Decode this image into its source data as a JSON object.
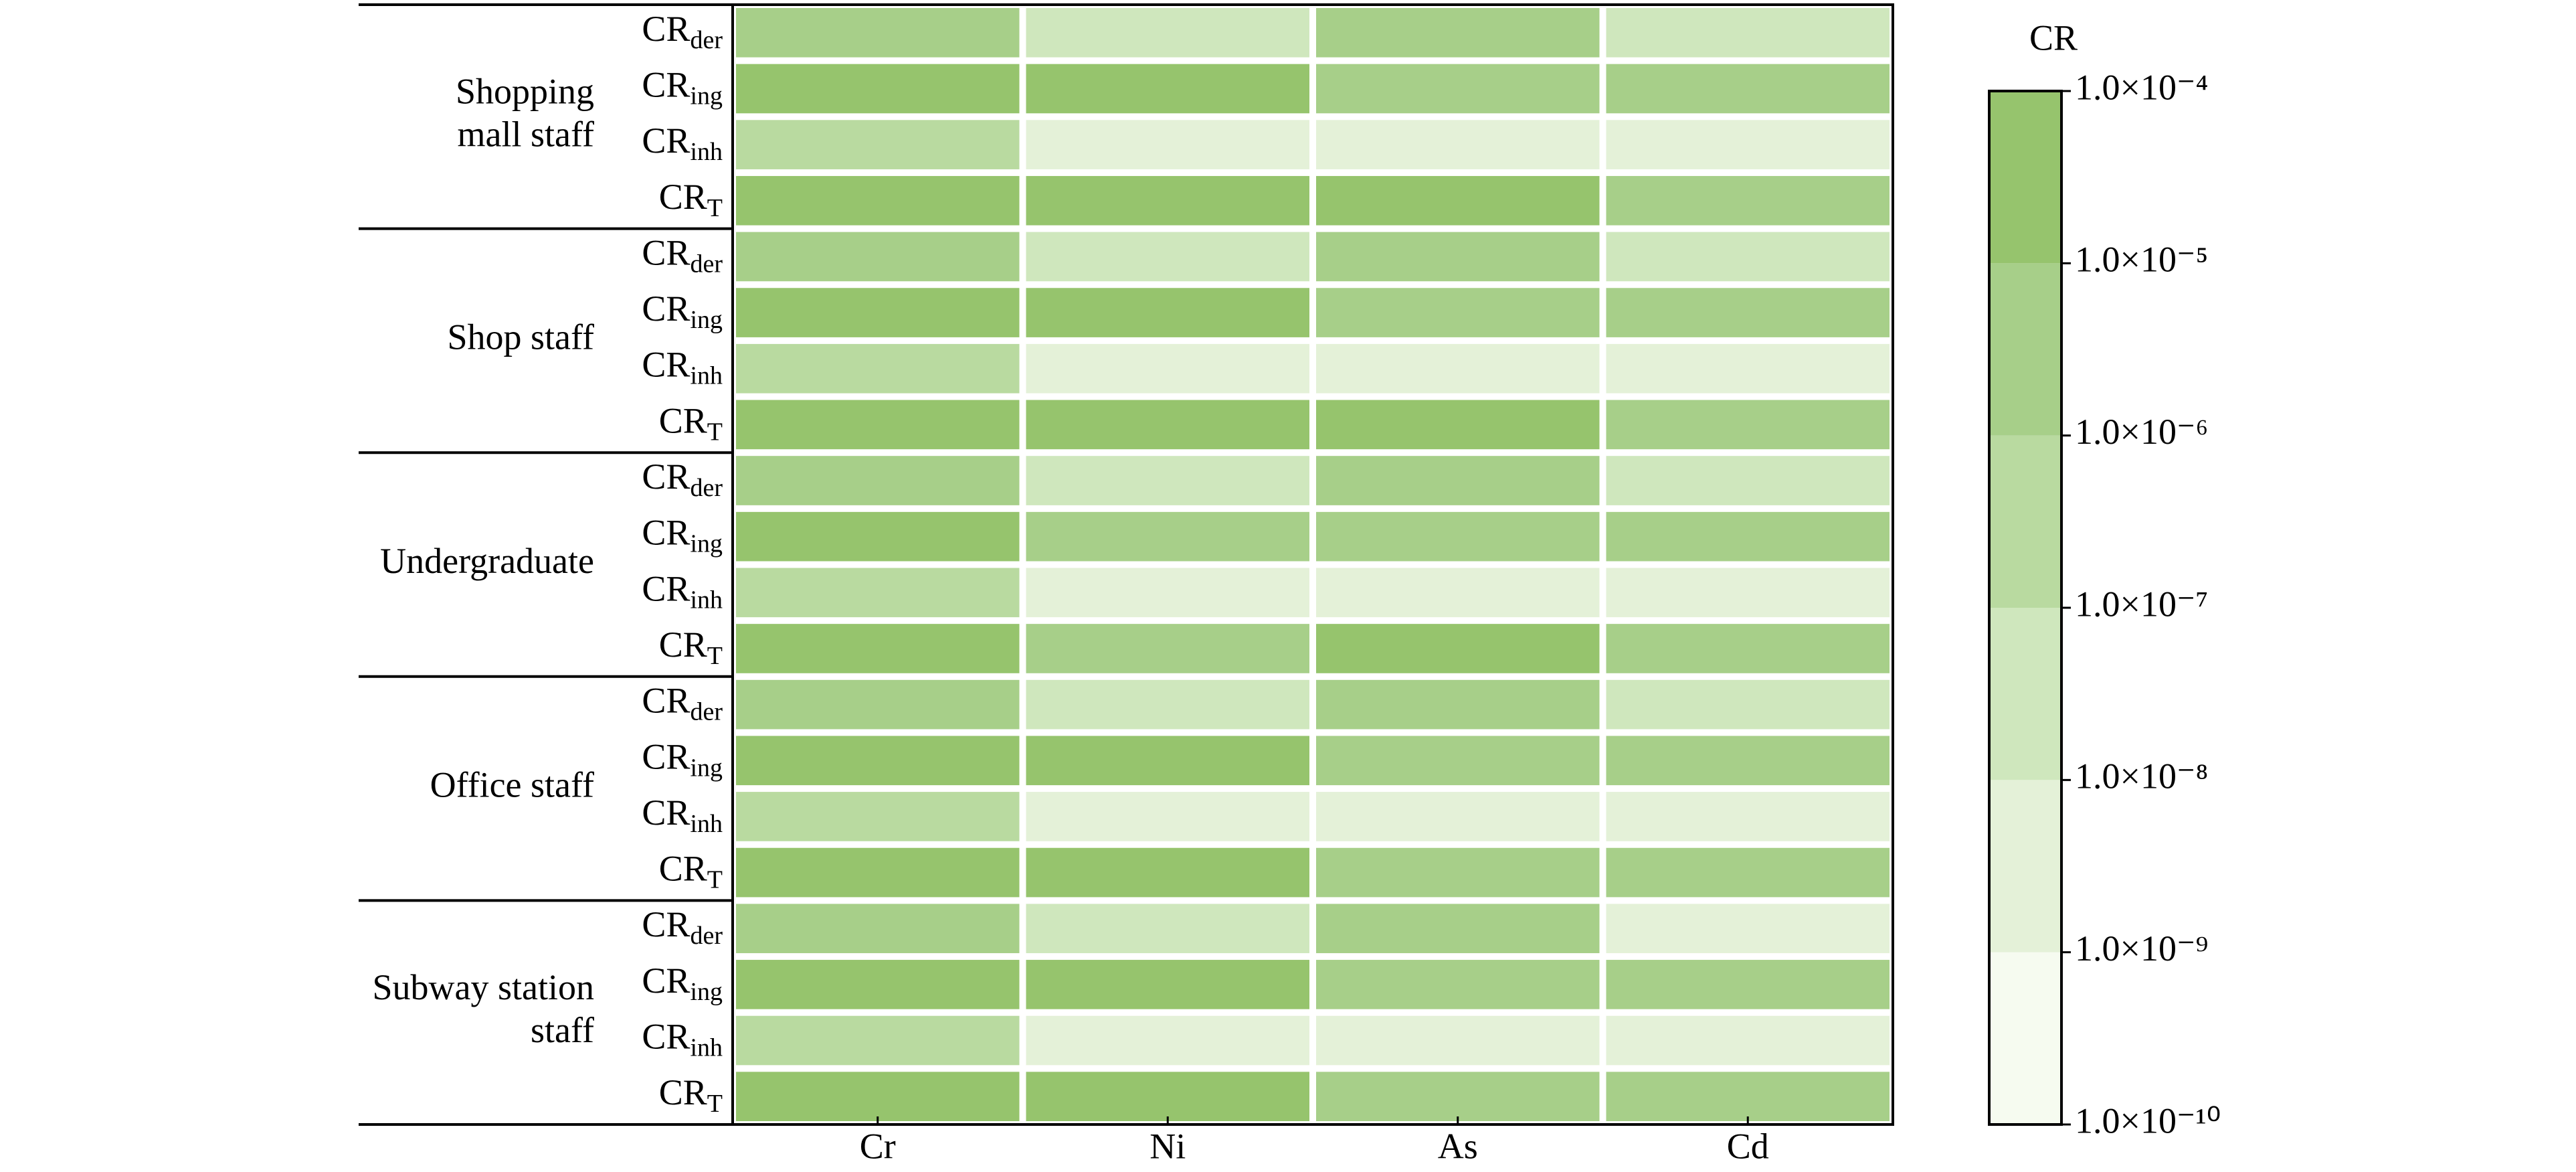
{
  "chart_data": {
    "type": "heatmap",
    "columns": [
      "Cr",
      "Ni",
      "As",
      "Cd"
    ],
    "groups": [
      {
        "lines": [
          "Shopping",
          "mall staff"
        ]
      },
      {
        "lines": [
          "Shop staff"
        ]
      },
      {
        "lines": [
          "Undergraduate"
        ]
      },
      {
        "lines": [
          "Office staff"
        ]
      },
      {
        "lines": [
          "Subway station",
          "staff"
        ]
      }
    ],
    "rows": [
      {
        "text": "CR",
        "sub": "der"
      },
      {
        "text": "CR",
        "sub": "ing"
      },
      {
        "text": "CR",
        "sub": "inh"
      },
      {
        "text": "CR",
        "sub": "T"
      },
      {
        "text": "CR",
        "sub": "der"
      },
      {
        "text": "CR",
        "sub": "ing"
      },
      {
        "text": "CR",
        "sub": "inh"
      },
      {
        "text": "CR",
        "sub": "T"
      },
      {
        "text": "CR",
        "sub": "der"
      },
      {
        "text": "CR",
        "sub": "ing"
      },
      {
        "text": "CR",
        "sub": "inh"
      },
      {
        "text": "CR",
        "sub": "T"
      },
      {
        "text": "CR",
        "sub": "der"
      },
      {
        "text": "CR",
        "sub": "ing"
      },
      {
        "text": "CR",
        "sub": "inh"
      },
      {
        "text": "CR",
        "sub": "T"
      },
      {
        "text": "CR",
        "sub": "der"
      },
      {
        "text": "CR",
        "sub": "ing"
      },
      {
        "text": "CR",
        "sub": "inh"
      },
      {
        "text": "CR",
        "sub": "T"
      }
    ],
    "values": [
      [
        3e-06,
        3e-08,
        3e-06,
        3e-08
      ],
      [
        3e-05,
        3e-05,
        3e-06,
        3e-06
      ],
      [
        3e-07,
        3e-09,
        3e-09,
        3e-09
      ],
      [
        3e-05,
        3e-05,
        3e-05,
        3e-06
      ],
      [
        3e-06,
        3e-08,
        3e-06,
        3e-08
      ],
      [
        3e-05,
        3e-05,
        3e-06,
        3e-06
      ],
      [
        3e-07,
        3e-09,
        3e-09,
        3e-09
      ],
      [
        3e-05,
        3e-05,
        3e-05,
        3e-06
      ],
      [
        3e-06,
        3e-08,
        3e-06,
        3e-08
      ],
      [
        3e-05,
        3e-06,
        3e-06,
        3e-06
      ],
      [
        3e-07,
        3e-09,
        3e-09,
        3e-09
      ],
      [
        3e-05,
        3e-06,
        3e-05,
        3e-06
      ],
      [
        3e-06,
        3e-08,
        3e-06,
        3e-08
      ],
      [
        3e-05,
        3e-05,
        3e-06,
        3e-06
      ],
      [
        3e-07,
        3e-09,
        3e-09,
        3e-09
      ],
      [
        3e-05,
        3e-05,
        3e-06,
        3e-06
      ],
      [
        3e-06,
        3e-08,
        3e-06,
        3e-09
      ],
      [
        3e-05,
        3e-05,
        3e-06,
        3e-06
      ],
      [
        3e-07,
        3e-09,
        3e-09,
        3e-09
      ],
      [
        3e-05,
        3e-05,
        3e-06,
        3e-06
      ]
    ],
    "colorbar_title": "CR",
    "log_scale": true,
    "clim": [
      1e-10,
      0.0001
    ],
    "colors": [
      "#f6fbf0",
      "#e4f1d8",
      "#cfe7bd",
      "#b9daa0",
      "#a7cf89",
      "#96c46d"
    ],
    "cticks": [
      {
        "value": 0.0001,
        "label": "1.0×10⁻⁴"
      },
      {
        "value": 1e-05,
        "label": "1.0×10⁻⁵"
      },
      {
        "value": 1e-06,
        "label": "1.0×10⁻⁶"
      },
      {
        "value": 1e-07,
        "label": "1.0×10⁻⁷"
      },
      {
        "value": 1e-08,
        "label": "1.0×10⁻⁸"
      },
      {
        "value": 1e-09,
        "label": "1.0×10⁻⁹"
      },
      {
        "value": 1e-10,
        "label": "1.0×10⁻¹⁰"
      }
    ]
  }
}
